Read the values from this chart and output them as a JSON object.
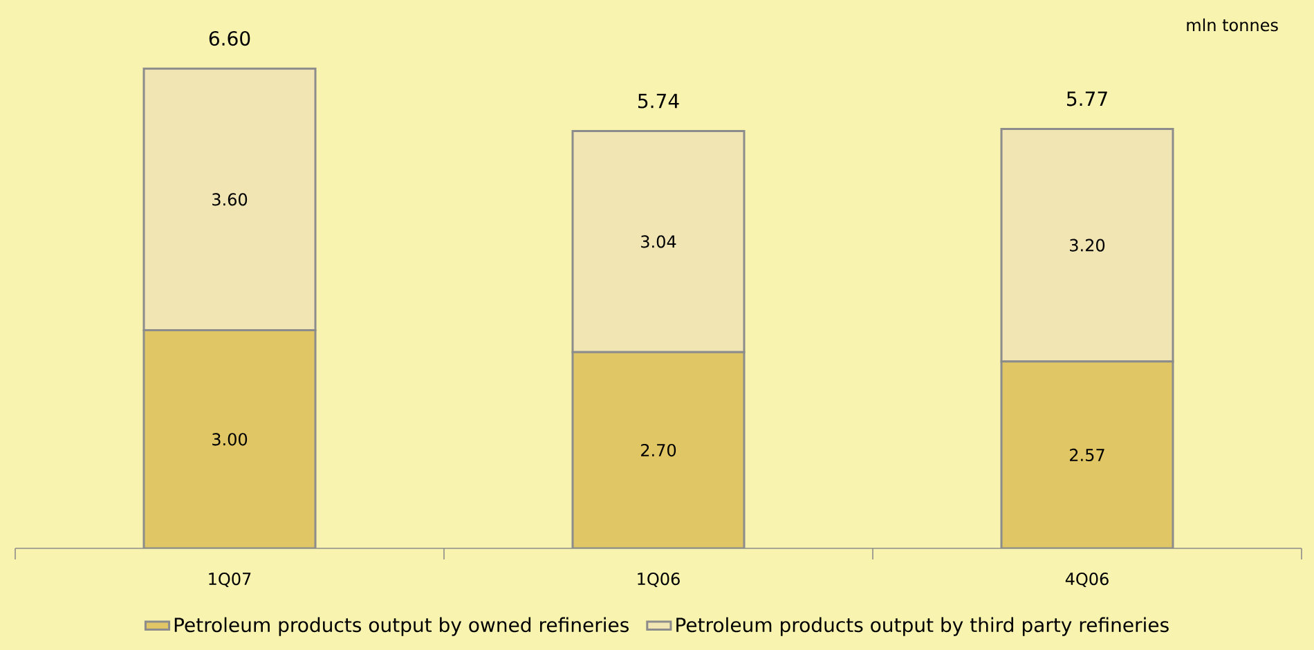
{
  "chart_data": {
    "type": "bar",
    "stacked": true,
    "ylabel": "mln tonnes",
    "categories": [
      "1Q07",
      "1Q06",
      "4Q06"
    ],
    "series": [
      {
        "name": "Petroleum products output by owned refineries",
        "color": "#e0c664",
        "values": [
          3.0,
          2.7,
          2.57
        ],
        "value_labels": [
          "3.00",
          "2.70",
          "2.57"
        ]
      },
      {
        "name": "Petroleum products output by third party refineries",
        "color": "#f1e5b3",
        "values": [
          3.6,
          3.04,
          3.2
        ],
        "value_labels": [
          "3.60",
          "3.04",
          "3.20"
        ]
      }
    ],
    "totals": [
      "6.60",
      "5.74",
      "5.77"
    ],
    "legend": "bottom",
    "grid": false
  }
}
